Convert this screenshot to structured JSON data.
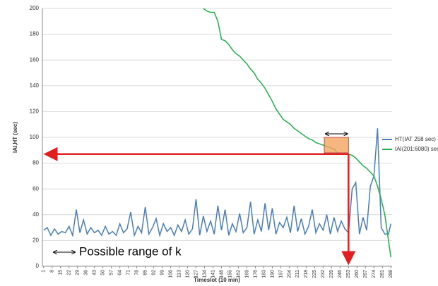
{
  "chart_data": {
    "type": "line",
    "x_label": "Timeslot (10 min)",
    "y_label": "IAI,HT (sec)",
    "annotation": "Possible range of k",
    "xlim": [
      0,
      289
    ],
    "xticks": [
      1,
      8,
      15,
      22,
      29,
      36,
      43,
      50,
      57,
      64,
      71,
      78,
      85,
      92,
      99,
      106,
      113,
      120,
      127,
      134,
      141,
      148,
      155,
      162,
      169,
      176,
      183,
      190,
      197,
      204,
      211,
      218,
      225,
      232,
      239,
      246,
      253,
      260,
      267,
      274,
      281,
      288
    ],
    "ylim": [
      0,
      200
    ],
    "yticks": [
      0,
      20,
      40,
      60,
      80,
      100,
      120,
      140,
      160,
      180,
      200
    ],
    "grid": true,
    "legend": "right",
    "x": [
      1,
      4,
      7,
      10,
      13,
      16,
      19,
      22,
      25,
      28,
      31,
      34,
      37,
      40,
      43,
      46,
      49,
      52,
      55,
      58,
      61,
      64,
      67,
      70,
      73,
      76,
      79,
      82,
      85,
      88,
      91,
      94,
      97,
      100,
      103,
      106,
      109,
      112,
      115,
      118,
      121,
      124,
      127,
      130,
      133,
      136,
      139,
      142,
      145,
      148,
      151,
      154,
      157,
      160,
      163,
      166,
      169,
      172,
      175,
      178,
      181,
      184,
      187,
      190,
      193,
      196,
      199,
      202,
      205,
      208,
      211,
      214,
      217,
      220,
      223,
      226,
      229,
      232,
      235,
      238,
      241,
      244,
      247,
      250,
      253,
      256,
      259,
      262,
      265,
      268,
      271,
      274,
      277,
      280,
      283,
      286,
      288
    ],
    "series": [
      {
        "name": "HT(IAT 258 sec)",
        "color": "#4a7ebb",
        "values": [
          28,
          30,
          24,
          29,
          25,
          27,
          26,
          31,
          24,
          44,
          26,
          36,
          25,
          30,
          26,
          28,
          24,
          31,
          25,
          27,
          24,
          33,
          26,
          29,
          42,
          24,
          31,
          26,
          46,
          25,
          30,
          37,
          24,
          33,
          27,
          30,
          24,
          32,
          27,
          36,
          25,
          29,
          52,
          24,
          39,
          27,
          35,
          25,
          47,
          28,
          44,
          24,
          33,
          27,
          41,
          26,
          30,
          50,
          25,
          36,
          27,
          49,
          28,
          45,
          25,
          34,
          30,
          38,
          26,
          47,
          27,
          37,
          25,
          31,
          44,
          26,
          33,
          28,
          40,
          25,
          38,
          27,
          35,
          29,
          26,
          60,
          65,
          25,
          38,
          28,
          62,
          70,
          107,
          30,
          25,
          25,
          33
        ]
      },
      {
        "name": "IAI(201:6080) sec",
        "color": "#22b04a",
        "values": [
          null,
          null,
          null,
          null,
          null,
          null,
          null,
          null,
          null,
          null,
          null,
          null,
          null,
          null,
          null,
          null,
          null,
          null,
          null,
          null,
          null,
          null,
          null,
          null,
          null,
          null,
          null,
          null,
          null,
          null,
          null,
          null,
          null,
          null,
          null,
          null,
          null,
          null,
          null,
          null,
          null,
          null,
          null,
          null,
          200,
          198,
          197,
          197,
          190,
          176,
          175,
          172,
          168,
          165,
          163,
          160,
          157,
          153,
          150,
          145,
          142,
          138,
          133,
          128,
          122,
          118,
          114,
          112,
          110,
          107,
          105,
          103,
          101,
          99,
          98,
          96,
          95,
          94,
          93,
          92,
          91,
          88,
          87,
          87,
          87,
          86,
          84,
          81,
          78,
          76,
          73,
          70,
          62,
          52,
          40,
          20,
          7
        ]
      }
    ],
    "highlight": {
      "x": [
        233,
        253
      ],
      "y": [
        88,
        100
      ],
      "color": "#f4a460"
    },
    "threshold": {
      "x": 253,
      "y": 87,
      "color": "#e02020"
    }
  }
}
